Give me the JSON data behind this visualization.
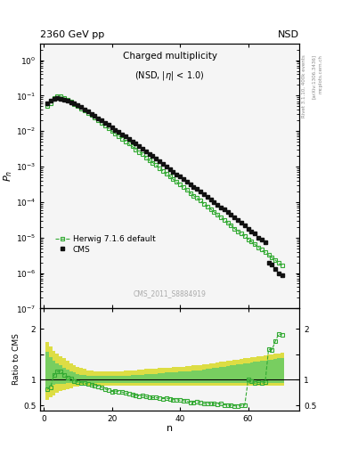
{
  "title_main": "Charged multiplicity",
  "title_sub": "(NSD, |η| < 1.0)",
  "header_left": "2360 GeV pp",
  "header_right": "NSD",
  "right_label_top": "Rivet 3.1.10, 400k events",
  "right_label_bot": "[arXiv:1306.3436]",
  "dataset_label": "CMS_2011_S8884919",
  "xlabel": "n",
  "ylabel_top": "$P_n$",
  "ylabel_bot": "Ratio to CMS",
  "cms_n": [
    1,
    2,
    3,
    4,
    5,
    6,
    7,
    8,
    9,
    10,
    11,
    12,
    13,
    14,
    15,
    16,
    17,
    18,
    19,
    20,
    21,
    22,
    23,
    24,
    25,
    26,
    27,
    28,
    29,
    30,
    31,
    32,
    33,
    34,
    35,
    36,
    37,
    38,
    39,
    40,
    41,
    42,
    43,
    44,
    45,
    46,
    47,
    48,
    49,
    50,
    51,
    52,
    53,
    54,
    55,
    56,
    57,
    58,
    59,
    60,
    61,
    62,
    63,
    64,
    65,
    66,
    67,
    68,
    69,
    70
  ],
  "cms_p": [
    0.062,
    0.073,
    0.081,
    0.085,
    0.083,
    0.079,
    0.073,
    0.066,
    0.06,
    0.053,
    0.047,
    0.041,
    0.036,
    0.031,
    0.027,
    0.023,
    0.02,
    0.017,
    0.015,
    0.013,
    0.011,
    0.0095,
    0.0082,
    0.007,
    0.006,
    0.0052,
    0.0044,
    0.0038,
    0.0032,
    0.0027,
    0.0023,
    0.002,
    0.0017,
    0.0014,
    0.0012,
    0.00099,
    0.00084,
    0.00072,
    0.00061,
    0.00052,
    0.00044,
    0.00038,
    0.00032,
    0.00027,
    0.00023,
    0.0002,
    0.00017,
    0.00014,
    0.00012,
    0.0001,
    8.5e-05,
    7.2e-05,
    6.1e-05,
    5.2e-05,
    4.4e-05,
    3.7e-05,
    3.1e-05,
    2.6e-05,
    2.2e-05,
    1.8e-05,
    1.5e-05,
    1.3e-05,
    1e-05,
    8.5e-06,
    7.2e-06,
    2e-06,
    1.7e-06,
    1.3e-06,
    1e-06,
    8.5e-07
  ],
  "herwig_n": [
    1,
    2,
    3,
    4,
    5,
    6,
    7,
    8,
    9,
    10,
    11,
    12,
    13,
    14,
    15,
    16,
    17,
    18,
    19,
    20,
    21,
    22,
    23,
    24,
    25,
    26,
    27,
    28,
    29,
    30,
    31,
    32,
    33,
    34,
    35,
    36,
    37,
    38,
    39,
    40,
    41,
    42,
    43,
    44,
    45,
    46,
    47,
    48,
    49,
    50,
    51,
    52,
    53,
    54,
    55,
    56,
    57,
    58,
    59,
    60,
    61,
    62,
    63,
    64,
    65,
    66,
    67,
    68,
    69,
    70
  ],
  "herwig_p": [
    0.05,
    0.062,
    0.088,
    0.099,
    0.096,
    0.087,
    0.077,
    0.067,
    0.059,
    0.051,
    0.044,
    0.038,
    0.033,
    0.028,
    0.024,
    0.02,
    0.017,
    0.014,
    0.012,
    0.01,
    0.0086,
    0.0073,
    0.0062,
    0.0052,
    0.0044,
    0.0037,
    0.0031,
    0.0026,
    0.0022,
    0.0018,
    0.0015,
    0.0013,
    0.0011,
    0.0009,
    0.00075,
    0.00063,
    0.00053,
    0.00044,
    0.00037,
    0.00031,
    0.00026,
    0.00022,
    0.00018,
    0.00015,
    0.00013,
    0.00011,
    9e-05,
    7.5e-05,
    6.3e-05,
    5.3e-05,
    4.4e-05,
    3.7e-05,
    3.1e-05,
    2.6e-05,
    2.2e-05,
    1.8e-05,
    1.5e-05,
    1.3e-05,
    1.1e-05,
    9e-06,
    7.6e-06,
    6.4e-06,
    5.3e-06,
    4.5e-06,
    3.8e-06,
    3.2e-06,
    2.7e-06,
    2.3e-06,
    1.9e-06,
    1.6e-06
  ],
  "ratio_n": [
    1,
    2,
    3,
    4,
    5,
    6,
    7,
    8,
    9,
    10,
    11,
    12,
    13,
    14,
    15,
    16,
    17,
    18,
    19,
    20,
    21,
    22,
    23,
    24,
    25,
    26,
    27,
    28,
    29,
    30,
    31,
    32,
    33,
    34,
    35,
    36,
    37,
    38,
    39,
    40,
    41,
    42,
    43,
    44,
    45,
    46,
    47,
    48,
    49,
    50,
    51,
    52,
    53,
    54,
    55,
    56,
    57,
    58,
    59,
    60,
    61,
    62,
    63,
    64,
    65,
    66,
    67,
    68,
    69,
    70
  ],
  "ratio_v": [
    0.81,
    0.85,
    1.09,
    1.16,
    1.16,
    1.1,
    1.05,
    1.02,
    0.98,
    0.96,
    0.94,
    0.93,
    0.92,
    0.9,
    0.89,
    0.87,
    0.85,
    0.82,
    0.8,
    0.77,
    0.78,
    0.77,
    0.76,
    0.74,
    0.73,
    0.71,
    0.7,
    0.68,
    0.69,
    0.67,
    0.65,
    0.65,
    0.65,
    0.64,
    0.63,
    0.64,
    0.63,
    0.61,
    0.61,
    0.6,
    0.59,
    0.58,
    0.56,
    0.56,
    0.57,
    0.55,
    0.53,
    0.54,
    0.53,
    0.53,
    0.52,
    0.53,
    0.51,
    0.5,
    0.5,
    0.49,
    0.48,
    0.5,
    0.5,
    1.0,
    0.97,
    0.93,
    0.95,
    0.93,
    0.95,
    1.6,
    1.59,
    1.76,
    1.9,
    1.88
  ],
  "band_n": [
    1,
    2,
    3,
    4,
    5,
    6,
    7,
    8,
    9,
    10,
    11,
    12,
    13,
    14,
    15,
    16,
    17,
    18,
    19,
    20,
    21,
    22,
    23,
    24,
    25,
    26,
    27,
    28,
    29,
    30,
    31,
    32,
    33,
    34,
    35,
    36,
    37,
    38,
    39,
    40,
    41,
    42,
    43,
    44,
    45,
    46,
    47,
    48,
    49,
    50,
    51,
    52,
    53,
    54,
    55,
    56,
    57,
    58,
    59,
    60,
    61,
    62,
    63,
    64,
    65,
    66,
    67,
    68,
    69,
    70
  ],
  "gb_lo": [
    0.85,
    0.88,
    0.9,
    0.92,
    0.92,
    0.92,
    0.93,
    0.93,
    0.93,
    0.93,
    0.93,
    0.93,
    0.93,
    0.93,
    0.93,
    0.93,
    0.93,
    0.93,
    0.93,
    0.93,
    0.93,
    0.93,
    0.93,
    0.93,
    0.93,
    0.93,
    0.93,
    0.93,
    0.93,
    0.93,
    0.93,
    0.93,
    0.93,
    0.93,
    0.93,
    0.93,
    0.93,
    0.93,
    0.93,
    0.93,
    0.93,
    0.93,
    0.93,
    0.93,
    0.93,
    0.93,
    0.93,
    0.93,
    0.93,
    0.93,
    0.93,
    0.93,
    0.93,
    0.93,
    0.93,
    0.93,
    0.93,
    0.93,
    0.93,
    0.93,
    0.93,
    0.93,
    0.93,
    0.93,
    0.93,
    0.93,
    0.93,
    0.93,
    0.93,
    0.93
  ],
  "gb_hi": [
    1.55,
    1.45,
    1.38,
    1.32,
    1.28,
    1.24,
    1.2,
    1.17,
    1.14,
    1.12,
    1.1,
    1.09,
    1.08,
    1.07,
    1.07,
    1.07,
    1.07,
    1.07,
    1.07,
    1.07,
    1.07,
    1.07,
    1.07,
    1.08,
    1.08,
    1.09,
    1.09,
    1.1,
    1.1,
    1.11,
    1.11,
    1.12,
    1.12,
    1.13,
    1.13,
    1.14,
    1.14,
    1.15,
    1.15,
    1.16,
    1.16,
    1.17,
    1.17,
    1.18,
    1.18,
    1.19,
    1.2,
    1.21,
    1.22,
    1.23,
    1.24,
    1.25,
    1.26,
    1.27,
    1.28,
    1.29,
    1.3,
    1.31,
    1.32,
    1.33,
    1.34,
    1.35,
    1.36,
    1.37,
    1.38,
    1.39,
    1.4,
    1.41,
    1.42,
    1.43
  ],
  "yb_lo": [
    0.6,
    0.65,
    0.7,
    0.75,
    0.78,
    0.8,
    0.82,
    0.84,
    0.86,
    0.87,
    0.88,
    0.88,
    0.89,
    0.89,
    0.89,
    0.89,
    0.89,
    0.89,
    0.89,
    0.89,
    0.89,
    0.89,
    0.89,
    0.89,
    0.89,
    0.89,
    0.89,
    0.89,
    0.89,
    0.89,
    0.89,
    0.89,
    0.89,
    0.89,
    0.89,
    0.89,
    0.89,
    0.89,
    0.89,
    0.89,
    0.89,
    0.89,
    0.89,
    0.89,
    0.89,
    0.89,
    0.89,
    0.89,
    0.89,
    0.89,
    0.89,
    0.89,
    0.89,
    0.89,
    0.89,
    0.89,
    0.89,
    0.89,
    0.89,
    0.89,
    0.89,
    0.89,
    0.89,
    0.89,
    0.89,
    0.89,
    0.89,
    0.89,
    0.89,
    0.89
  ],
  "yb_hi": [
    1.75,
    1.65,
    1.57,
    1.52,
    1.47,
    1.42,
    1.38,
    1.33,
    1.29,
    1.26,
    1.23,
    1.21,
    1.19,
    1.18,
    1.17,
    1.17,
    1.17,
    1.17,
    1.17,
    1.17,
    1.17,
    1.17,
    1.17,
    1.18,
    1.18,
    1.19,
    1.19,
    1.2,
    1.2,
    1.21,
    1.21,
    1.22,
    1.22,
    1.23,
    1.23,
    1.24,
    1.24,
    1.25,
    1.25,
    1.26,
    1.26,
    1.27,
    1.27,
    1.28,
    1.28,
    1.29,
    1.3,
    1.31,
    1.32,
    1.33,
    1.34,
    1.35,
    1.36,
    1.37,
    1.38,
    1.39,
    1.4,
    1.41,
    1.42,
    1.43,
    1.44,
    1.45,
    1.46,
    1.47,
    1.48,
    1.49,
    1.5,
    1.51,
    1.52,
    1.53
  ],
  "cms_color": "#111111",
  "herwig_color": "#33aa33",
  "band_yellow": "#dddd44",
  "band_green": "#66cc66",
  "bg_color": "#f5f5f5"
}
